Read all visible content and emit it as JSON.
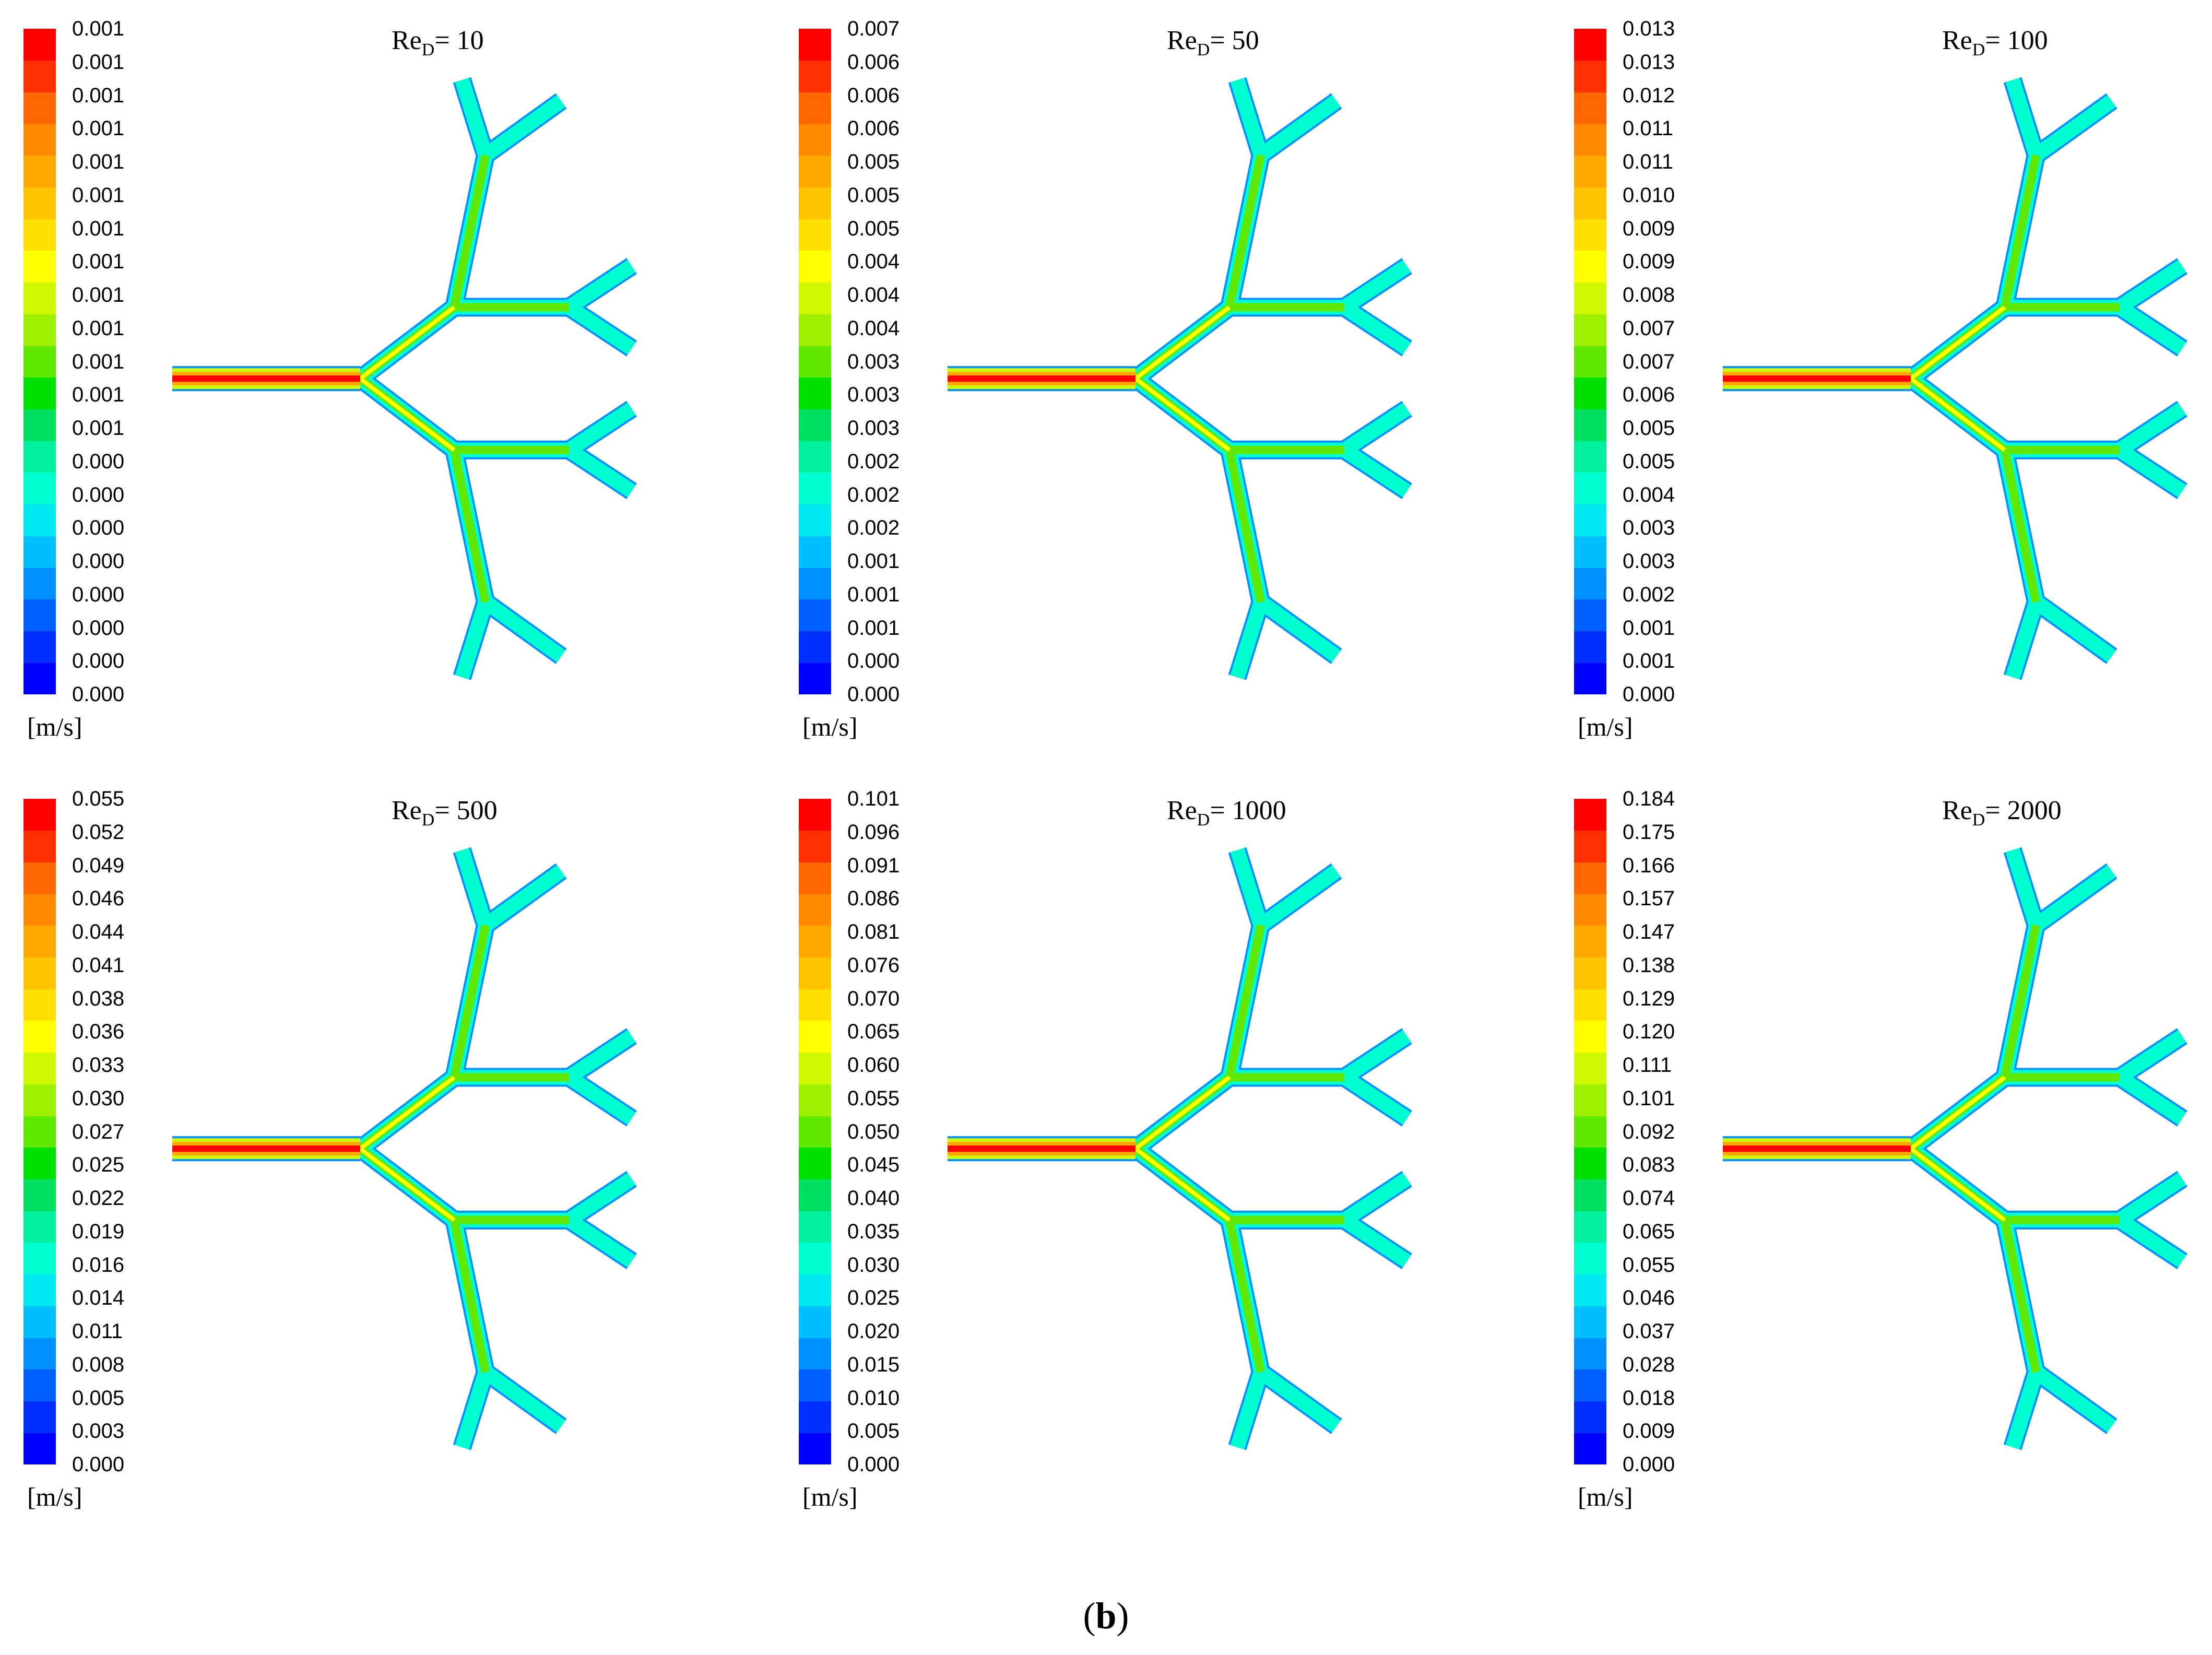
{
  "colormap": [
    "#0000ff",
    "#0030ff",
    "#0060ff",
    "#0090ff",
    "#00bfff",
    "#00e8f0",
    "#00ffd0",
    "#00f0a0",
    "#00e060",
    "#00e000",
    "#60e800",
    "#9ef000",
    "#d0f800",
    "#ffff00",
    "#ffe000",
    "#ffc400",
    "#ffa800",
    "#ff8a00",
    "#ff6800",
    "#ff3000",
    "#ff0000"
  ],
  "panels": [
    {
      "re_prefix": "Re",
      "re_subscript": "D",
      "re_value": "= 10",
      "unit": "[m/s]",
      "ticks": [
        "0.001",
        "0.001",
        "0.001",
        "0.001",
        "0.001",
        "0.001",
        "0.001",
        "0.001",
        "0.001",
        "0.001",
        "0.001",
        "0.001",
        "0.001",
        "0.000",
        "0.000",
        "0.000",
        "0.000",
        "0.000",
        "0.000",
        "0.000",
        "0.000"
      ]
    },
    {
      "re_prefix": "Re",
      "re_subscript": "D",
      "re_value": "= 50",
      "unit": "[m/s]",
      "ticks": [
        "0.007",
        "0.006",
        "0.006",
        "0.006",
        "0.005",
        "0.005",
        "0.005",
        "0.004",
        "0.004",
        "0.004",
        "0.003",
        "0.003",
        "0.003",
        "0.002",
        "0.002",
        "0.002",
        "0.001",
        "0.001",
        "0.001",
        "0.000",
        "0.000"
      ]
    },
    {
      "re_prefix": "Re",
      "re_subscript": "D",
      "re_value": "= 100",
      "unit": "[m/s]",
      "ticks": [
        "0.013",
        "0.013",
        "0.012",
        "0.011",
        "0.011",
        "0.010",
        "0.009",
        "0.009",
        "0.008",
        "0.007",
        "0.007",
        "0.006",
        "0.005",
        "0.005",
        "0.004",
        "0.003",
        "0.003",
        "0.002",
        "0.001",
        "0.001",
        "0.000"
      ]
    },
    {
      "re_prefix": "Re",
      "re_subscript": "D",
      "re_value": "= 500",
      "unit": "[m/s]",
      "ticks": [
        "0.055",
        "0.052",
        "0.049",
        "0.046",
        "0.044",
        "0.041",
        "0.038",
        "0.036",
        "0.033",
        "0.030",
        "0.027",
        "0.025",
        "0.022",
        "0.019",
        "0.016",
        "0.014",
        "0.011",
        "0.008",
        "0.005",
        "0.003",
        "0.000"
      ]
    },
    {
      "re_prefix": "Re",
      "re_subscript": "D",
      "re_value": "= 1000",
      "unit": "[m/s]",
      "ticks": [
        "0.101",
        "0.096",
        "0.091",
        "0.086",
        "0.081",
        "0.076",
        "0.070",
        "0.065",
        "0.060",
        "0.055",
        "0.050",
        "0.045",
        "0.040",
        "0.035",
        "0.030",
        "0.025",
        "0.020",
        "0.015",
        "0.010",
        "0.005",
        "0.000"
      ]
    },
    {
      "re_prefix": "Re",
      "re_subscript": "D",
      "re_value": "= 2000",
      "unit": "[m/s]",
      "ticks": [
        "0.184",
        "0.175",
        "0.166",
        "0.157",
        "0.147",
        "0.138",
        "0.129",
        "0.120",
        "0.111",
        "0.101",
        "0.092",
        "0.083",
        "0.074",
        "0.065",
        "0.055",
        "0.046",
        "0.037",
        "0.028",
        "0.018",
        "0.009",
        "0.000"
      ]
    }
  ],
  "caption": {
    "open": "(",
    "label": "b",
    "close": ")"
  }
}
